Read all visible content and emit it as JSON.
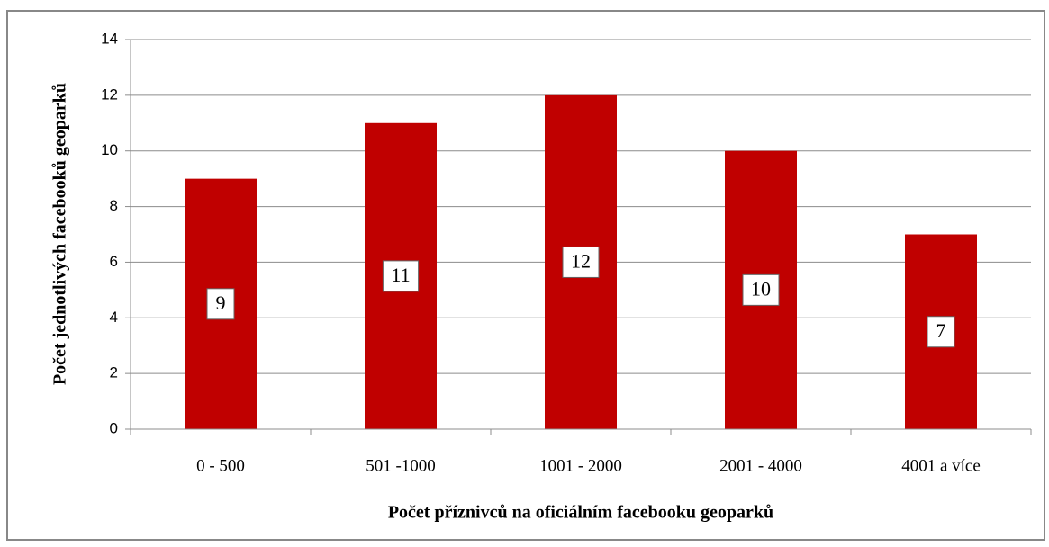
{
  "chart_data": {
    "type": "bar",
    "xlabel": "Počet příznivců na oficiálním facebooku geoparků",
    "ylabel": "Počet jednotlivých facebooků geoparků",
    "categories": [
      "0 - 500",
      "501 -1000",
      "1001 - 2000",
      "2001 - 4000",
      "4001 a více"
    ],
    "values": [
      9,
      11,
      12,
      10,
      7
    ],
    "color": "#c00000",
    "ylim": [
      0,
      14
    ],
    "yticks": [
      0,
      2,
      4,
      6,
      8,
      10,
      12,
      14
    ],
    "grid": true
  }
}
